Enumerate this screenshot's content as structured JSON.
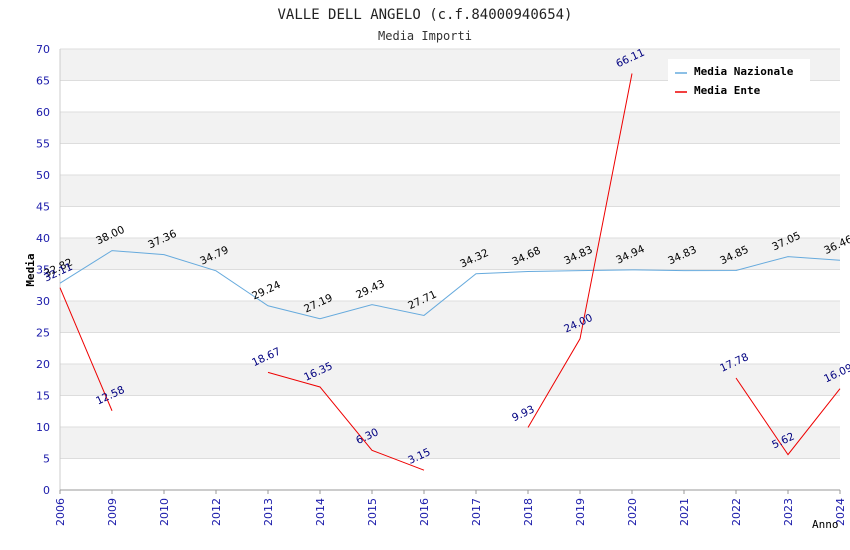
{
  "chart_data": {
    "type": "line",
    "title": "VALLE DELL ANGELO (c.f.84000940654)",
    "subtitle": "Media Importi",
    "xlabel": "Anno",
    "ylabel": "Media",
    "ylim": [
      0,
      70
    ],
    "yticks": [
      0,
      5,
      10,
      15,
      20,
      25,
      30,
      35,
      40,
      45,
      50,
      55,
      60,
      65,
      70
    ],
    "grid": true,
    "legend_position": "top-right",
    "categories": [
      "2006",
      "2009",
      "2010",
      "2012",
      "2013",
      "2014",
      "2015",
      "2016",
      "2017",
      "2018",
      "2019",
      "2020",
      "2021",
      "2022",
      "2023",
      "2024"
    ],
    "series": [
      {
        "name": "Media Nazionale",
        "color": "#66aadd",
        "label_color": "#000000",
        "values": [
          32.82,
          38.0,
          37.36,
          34.79,
          29.24,
          27.19,
          29.43,
          27.71,
          34.32,
          34.68,
          34.83,
          34.94,
          34.83,
          34.85,
          37.05,
          36.46
        ],
        "labels": [
          "32.82",
          "38.00",
          "37.36",
          "34.79",
          "29.24",
          "27.19",
          "29.43",
          "27.71",
          "34.32",
          "34.68",
          "34.83",
          "34.94",
          "34.83",
          "34.85",
          "37.05",
          "36.46"
        ]
      },
      {
        "name": "Media Ente",
        "color": "#ee0000",
        "label_color": "#000080",
        "values": [
          32.11,
          12.58,
          null,
          null,
          18.67,
          16.35,
          6.3,
          3.15,
          null,
          9.93,
          24.0,
          66.11,
          null,
          17.78,
          5.62,
          16.09
        ],
        "labels": [
          "32.11",
          "12.58",
          null,
          null,
          "18.67",
          "16.35",
          "6.30",
          "3.15",
          null,
          "9.93",
          "24.00",
          "66.11",
          null,
          "17.78",
          "5.62",
          "16.09"
        ]
      }
    ]
  }
}
